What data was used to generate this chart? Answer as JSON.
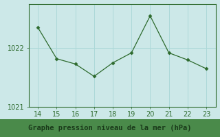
{
  "x": [
    14,
    15,
    16,
    17,
    18,
    19,
    20,
    21,
    22,
    23
  ],
  "y": [
    1022.35,
    1021.82,
    1021.73,
    1021.52,
    1021.75,
    1021.92,
    1022.55,
    1021.92,
    1021.8,
    1021.65
  ],
  "line_color": "#2d6a2d",
  "marker": "D",
  "marker_size": 2.5,
  "plot_bg_color": "#cce8e8",
  "fig_bg_color": "#cce8e8",
  "label_bg_color": "#4a8a4a",
  "grid_color": "#add8d8",
  "xlabel": "Graphe pression niveau de la mer (hPa)",
  "xlabel_color": "#2d6a2d",
  "xlabel_fontsize": 7.5,
  "tick_color": "#2d6a2d",
  "tick_fontsize": 7,
  "ylim": [
    1021.1,
    1022.75
  ],
  "xlim": [
    13.5,
    23.5
  ],
  "yticks": [
    1021,
    1022
  ],
  "xticks": [
    14,
    15,
    16,
    17,
    18,
    19,
    20,
    21,
    22,
    23
  ],
  "spine_color": "#2d6a2d",
  "spine_bottom_color": "#2d6a2d"
}
